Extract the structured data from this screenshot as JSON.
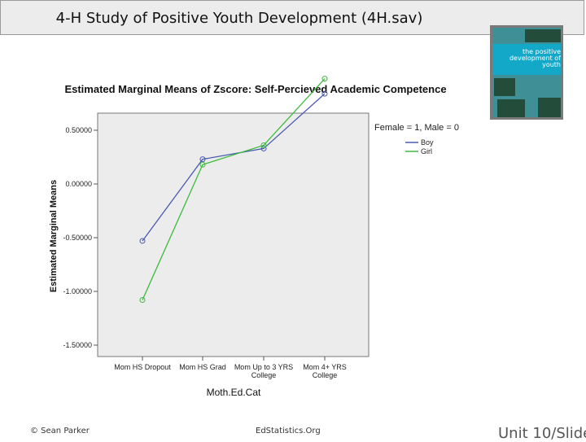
{
  "slide": {
    "title": "4-H Study of Positive Youth Development (4H.sav)",
    "footer_left": "© Sean Parker",
    "footer_mid": "EdStatistics.Org",
    "footer_right": "Unit 10/Slide"
  },
  "cover": {
    "text": "the positive development of youth",
    "colors": {
      "band": "#13a8c8",
      "panel": "#3f8f96"
    }
  },
  "chart_data": {
    "type": "line",
    "title": "Estimated Marginal Means of Zscore:  Self-Percieved Academic Competence",
    "xlabel": "Moth.Ed.Cat",
    "ylabel": "Estimated Marginal Means",
    "categories": [
      "Mom HS Dropout",
      "Mom HS Grad",
      "Mom Up to 3 YRS College",
      "Mom 4+ YRS College"
    ],
    "category_lines": [
      [
        "Mom HS Dropout"
      ],
      [
        "Mom HS Grad"
      ],
      [
        "Mom Up to 3 YRS",
        "College"
      ],
      [
        "Mom 4+ YRS",
        "College"
      ]
    ],
    "yticks": [
      0.5,
      0.0,
      -0.5,
      -1.0,
      -1.5
    ],
    "ytick_labels": [
      "0.50000",
      "0.00000",
      "-0.50000",
      "-1.00000",
      "-1.50000"
    ],
    "ylim": [
      -1.5,
      0.5
    ],
    "legend_title": "Female = 1, Male = 0",
    "legend_position": "top-right",
    "grid": false,
    "series": [
      {
        "name": "Boy",
        "color": "#4a5ab0",
        "values": [
          -0.53,
          0.23,
          0.33,
          0.84
        ]
      },
      {
        "name": "Girl",
        "color": "#3dbb3d",
        "values": [
          -1.08,
          0.18,
          0.36,
          0.98
        ]
      }
    ]
  }
}
